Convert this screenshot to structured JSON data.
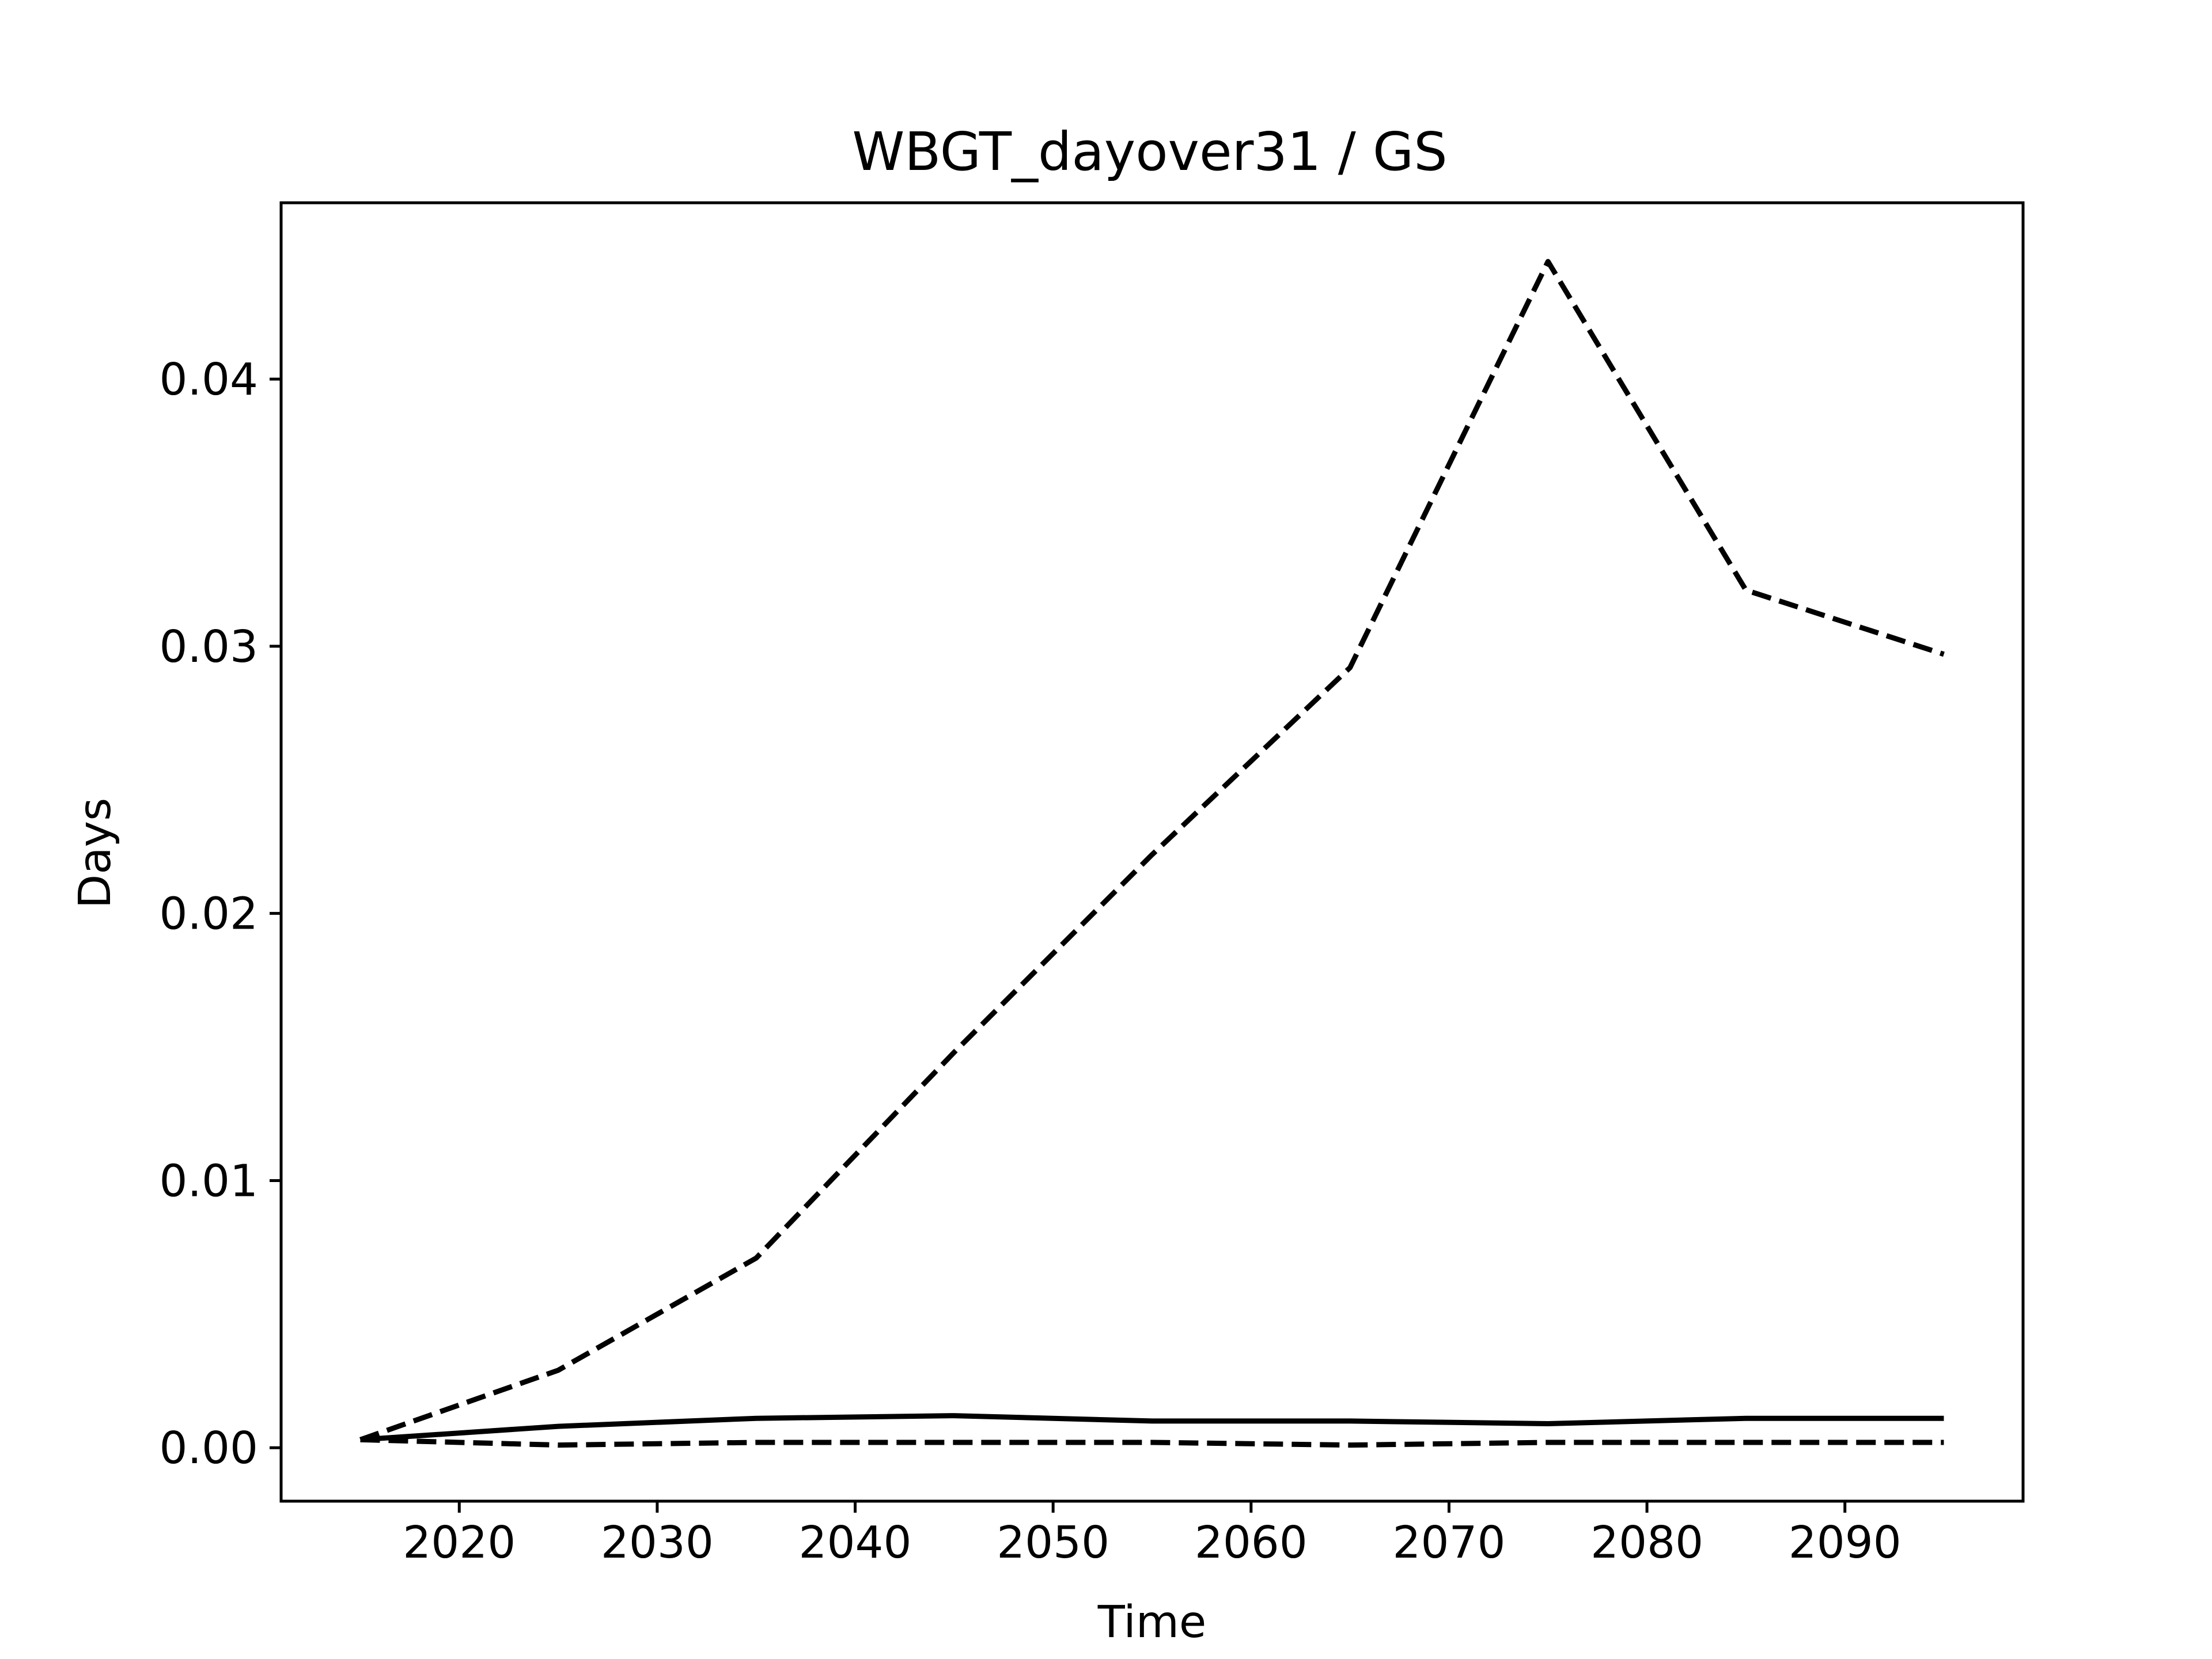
{
  "chart_data": {
    "type": "line",
    "title": "WBGT_dayover31 / GS",
    "xlabel": "Time",
    "ylabel": "Days",
    "x": [
      2015,
      2025,
      2035,
      2045,
      2055,
      2065,
      2075,
      2085,
      2095
    ],
    "xlim": [
      2011,
      2099
    ],
    "ylim": [
      -0.002,
      0.0466
    ],
    "x_ticks": [
      2020,
      2030,
      2040,
      2050,
      2060,
      2070,
      2080,
      2090
    ],
    "x_tick_labels": [
      "2020",
      "2030",
      "2040",
      "2050",
      "2060",
      "2070",
      "2080",
      "2090"
    ],
    "y_ticks": [
      0.0,
      0.01,
      0.02,
      0.03,
      0.04
    ],
    "y_tick_labels": [
      "0.00",
      "0.01",
      "0.02",
      "0.03",
      "0.04"
    ],
    "grid": false,
    "legend": "none",
    "series": [
      {
        "style": "dashed",
        "color": "#000000",
        "values": [
          0.0003,
          0.0029,
          0.0071,
          0.0148,
          0.0222,
          0.0292,
          0.0444,
          0.0321,
          0.0297
        ]
      },
      {
        "style": "solid",
        "color": "#000000",
        "values": [
          0.0003,
          0.0008,
          0.0011,
          0.0012,
          0.001,
          0.001,
          0.0009,
          0.0011,
          0.0011
        ]
      },
      {
        "style": "dashed",
        "color": "#000000",
        "values": [
          0.0003,
          0.0001,
          0.0002,
          0.0002,
          0.0002,
          0.0001,
          0.0002,
          0.0002,
          0.0002
        ]
      }
    ]
  }
}
